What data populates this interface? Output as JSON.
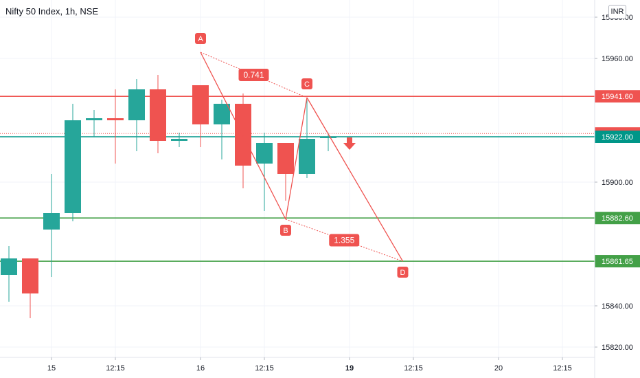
{
  "title": "Nifty 50 Index, 1h, NSE",
  "currency_button": "INR",
  "colors": {
    "up": "#26a69a",
    "down": "#ef5350",
    "resistance": "#ef5350",
    "support": "#43a047",
    "pattern": "#ef5350",
    "price_line": "#009688",
    "grid": "#f0f3fa",
    "text": "#131722"
  },
  "chart_data": {
    "type": "candlestick",
    "y_ticks": [
      15980,
      15960,
      15900,
      15840,
      15820
    ],
    "ylim": [
      15805,
      15985
    ],
    "x_ticks": [
      {
        "label": "15",
        "i": 2,
        "bold": false
      },
      {
        "label": "12:15",
        "i": 5,
        "bold": false
      },
      {
        "label": "16",
        "i": 9,
        "bold": false
      },
      {
        "label": "12:15",
        "i": 12,
        "bold": false
      },
      {
        "label": "19",
        "i": 16,
        "bold": true
      },
      {
        "label": "12:15",
        "i": 19,
        "bold": false
      },
      {
        "label": "20",
        "i": 23,
        "bold": false
      },
      {
        "label": "12:15",
        "i": 26,
        "bold": false
      }
    ],
    "candles": [
      {
        "o": 15855,
        "h": 15869,
        "l": 15842,
        "c": 15863
      },
      {
        "o": 15863,
        "h": 15863,
        "l": 15834,
        "c": 15846
      },
      {
        "o": 15877,
        "h": 15904,
        "l": 15854,
        "c": 15885
      },
      {
        "o": 15885,
        "h": 15938,
        "l": 15881,
        "c": 15930
      },
      {
        "o": 15930,
        "h": 15935,
        "l": 15922,
        "c": 15931
      },
      {
        "o": 15931,
        "h": 15945,
        "l": 15909,
        "c": 15930
      },
      {
        "o": 15930,
        "h": 15950,
        "l": 15915,
        "c": 15945
      },
      {
        "o": 15945,
        "h": 15952,
        "l": 15914,
        "c": 15920
      },
      {
        "o": 15920,
        "h": 15924,
        "l": 15917,
        "c": 15921
      },
      {
        "o": 15947,
        "h": 15947,
        "l": 15917,
        "c": 15928
      },
      {
        "o": 15928,
        "h": 15940,
        "l": 15911,
        "c": 15938
      },
      {
        "o": 15938,
        "h": 15943,
        "l": 15897,
        "c": 15908
      },
      {
        "o": 15909,
        "h": 15924,
        "l": 15886,
        "c": 15919
      },
      {
        "o": 15919,
        "h": 15919,
        "l": 15891,
        "c": 15904
      },
      {
        "o": 15904,
        "h": 15940,
        "l": 15902,
        "c": 15921
      },
      {
        "o": 15922,
        "h": 15924,
        "l": 15915,
        "c": 15922
      }
    ],
    "levels": [
      {
        "value": 15941.6,
        "label": "15941.60",
        "kind": "resistance"
      },
      {
        "value": 15923.6,
        "label": "15923.60",
        "kind": "price"
      },
      {
        "value": 15922.0,
        "label": "15922.00",
        "kind": "last"
      },
      {
        "value": 15882.6,
        "label": "15882.60",
        "kind": "support"
      },
      {
        "value": 15861.65,
        "label": "15861.65",
        "kind": "support"
      }
    ],
    "pattern_points": [
      {
        "name": "A",
        "i": 9,
        "y": 15963
      },
      {
        "name": "B",
        "i": 13,
        "y": 15882
      },
      {
        "name": "C",
        "i": 14,
        "y": 15941
      },
      {
        "name": "D",
        "i": 18.5,
        "y": 15861.65
      }
    ],
    "ratios": [
      {
        "label": "0.741",
        "between": [
          "A",
          "C"
        ]
      },
      {
        "label": "1.355",
        "between": [
          "B",
          "D"
        ]
      }
    ],
    "signal": {
      "direction": "down",
      "i": 16,
      "y": 15917
    }
  }
}
